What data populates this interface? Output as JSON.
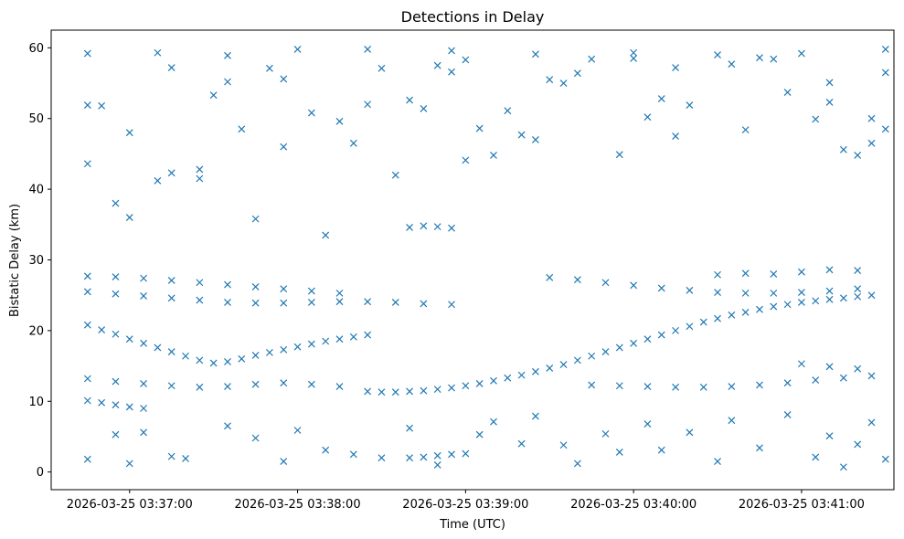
{
  "chart_data": {
    "type": "scatter",
    "title": "Detections in Delay",
    "xlabel": "Time (UTC)",
    "ylabel": "Bistatic Delay (km)",
    "x_ticks": [
      "2026-03-25 03:37:00",
      "2026-03-25 03:38:00",
      "2026-03-25 03:39:00",
      "2026-03-25 03:40:00",
      "2026-03-25 03:41:00"
    ],
    "y_ticks": [
      0,
      10,
      20,
      30,
      40,
      50,
      60
    ],
    "xlim": [
      "2026-03-25 03:36:32",
      "2026-03-25 03:41:33"
    ],
    "ylim": [
      -2.5,
      62.5
    ],
    "grid": false,
    "marker": "x",
    "color": "#1f77b4",
    "series": [
      {
        "points": [
          [
            "2026-03-25 03:36:45",
            20.8
          ],
          [
            "2026-03-25 03:36:50",
            20.1
          ],
          [
            "2026-03-25 03:36:55",
            19.5
          ],
          [
            "2026-03-25 03:37:00",
            18.8
          ],
          [
            "2026-03-25 03:37:05",
            18.2
          ],
          [
            "2026-03-25 03:37:10",
            17.6
          ],
          [
            "2026-03-25 03:37:15",
            17.0
          ],
          [
            "2026-03-25 03:37:20",
            16.4
          ],
          [
            "2026-03-25 03:37:25",
            15.8
          ],
          [
            "2026-03-25 03:37:30",
            15.4
          ],
          [
            "2026-03-25 03:37:35",
            15.6
          ],
          [
            "2026-03-25 03:37:40",
            16.0
          ],
          [
            "2026-03-25 03:37:45",
            16.5
          ],
          [
            "2026-03-25 03:37:50",
            16.9
          ],
          [
            "2026-03-25 03:37:55",
            17.3
          ],
          [
            "2026-03-25 03:38:00",
            17.7
          ],
          [
            "2026-03-25 03:38:05",
            18.1
          ],
          [
            "2026-03-25 03:38:10",
            18.5
          ],
          [
            "2026-03-25 03:38:15",
            18.8
          ],
          [
            "2026-03-25 03:38:20",
            19.1
          ],
          [
            "2026-03-25 03:38:25",
            19.4
          ],
          [
            "2026-03-25 03:38:25",
            11.4
          ],
          [
            "2026-03-25 03:38:30",
            11.3
          ],
          [
            "2026-03-25 03:38:35",
            11.3
          ],
          [
            "2026-03-25 03:38:40",
            11.4
          ],
          [
            "2026-03-25 03:38:45",
            11.5
          ],
          [
            "2026-03-25 03:38:50",
            11.7
          ],
          [
            "2026-03-25 03:38:55",
            11.9
          ],
          [
            "2026-03-25 03:39:00",
            12.2
          ],
          [
            "2026-03-25 03:39:05",
            12.5
          ],
          [
            "2026-03-25 03:39:10",
            12.9
          ],
          [
            "2026-03-25 03:39:15",
            13.3
          ],
          [
            "2026-03-25 03:39:20",
            13.7
          ],
          [
            "2026-03-25 03:39:25",
            14.2
          ],
          [
            "2026-03-25 03:39:30",
            14.7
          ],
          [
            "2026-03-25 03:39:35",
            15.2
          ],
          [
            "2026-03-25 03:39:40",
            15.8
          ],
          [
            "2026-03-25 03:39:45",
            16.4
          ],
          [
            "2026-03-25 03:39:50",
            17.0
          ],
          [
            "2026-03-25 03:39:55",
            17.6
          ],
          [
            "2026-03-25 03:40:00",
            18.2
          ],
          [
            "2026-03-25 03:40:05",
            18.8
          ],
          [
            "2026-03-25 03:40:10",
            19.4
          ],
          [
            "2026-03-25 03:40:15",
            20.0
          ],
          [
            "2026-03-25 03:40:20",
            20.6
          ],
          [
            "2026-03-25 03:40:25",
            21.2
          ],
          [
            "2026-03-25 03:40:30",
            21.7
          ],
          [
            "2026-03-25 03:40:35",
            22.2
          ],
          [
            "2026-03-25 03:40:40",
            22.6
          ],
          [
            "2026-03-25 03:40:45",
            23.0
          ],
          [
            "2026-03-25 03:40:50",
            23.4
          ],
          [
            "2026-03-25 03:40:55",
            23.7
          ],
          [
            "2026-03-25 03:41:00",
            24.0
          ],
          [
            "2026-03-25 03:41:05",
            24.2
          ],
          [
            "2026-03-25 03:41:10",
            24.4
          ],
          [
            "2026-03-25 03:41:15",
            24.6
          ],
          [
            "2026-03-25 03:41:20",
            24.8
          ],
          [
            "2026-03-25 03:41:25",
            25.0
          ],
          [
            "2026-03-25 03:36:45",
            25.5
          ],
          [
            "2026-03-25 03:36:55",
            25.2
          ],
          [
            "2026-03-25 03:37:05",
            24.9
          ],
          [
            "2026-03-25 03:37:15",
            24.6
          ],
          [
            "2026-03-25 03:37:25",
            24.3
          ],
          [
            "2026-03-25 03:37:35",
            24.0
          ],
          [
            "2026-03-25 03:37:45",
            23.9
          ],
          [
            "2026-03-25 03:37:55",
            23.9
          ],
          [
            "2026-03-25 03:38:05",
            24.0
          ],
          [
            "2026-03-25 03:38:15",
            24.1
          ],
          [
            "2026-03-25 03:38:25",
            24.1
          ],
          [
            "2026-03-25 03:38:35",
            24.0
          ],
          [
            "2026-03-25 03:38:45",
            23.8
          ],
          [
            "2026-03-25 03:38:55",
            23.7
          ],
          [
            "2026-03-25 03:36:45",
            27.7
          ],
          [
            "2026-03-25 03:36:55",
            27.6
          ],
          [
            "2026-03-25 03:37:05",
            27.4
          ],
          [
            "2026-03-25 03:37:15",
            27.1
          ],
          [
            "2026-03-25 03:37:25",
            26.8
          ],
          [
            "2026-03-25 03:37:35",
            26.5
          ],
          [
            "2026-03-25 03:37:45",
            26.2
          ],
          [
            "2026-03-25 03:37:55",
            25.9
          ],
          [
            "2026-03-25 03:38:05",
            25.6
          ],
          [
            "2026-03-25 03:38:15",
            25.3
          ],
          [
            "2026-03-25 03:36:45",
            13.2
          ],
          [
            "2026-03-25 03:36:55",
            12.8
          ],
          [
            "2026-03-25 03:37:05",
            12.5
          ],
          [
            "2026-03-25 03:37:15",
            12.2
          ],
          [
            "2026-03-25 03:37:25",
            12.0
          ],
          [
            "2026-03-25 03:37:35",
            12.1
          ],
          [
            "2026-03-25 03:37:45",
            12.4
          ],
          [
            "2026-03-25 03:37:55",
            12.6
          ],
          [
            "2026-03-25 03:38:05",
            12.4
          ],
          [
            "2026-03-25 03:38:15",
            12.1
          ],
          [
            "2026-03-25 03:36:45",
            10.1
          ],
          [
            "2026-03-25 03:36:50",
            9.8
          ],
          [
            "2026-03-25 03:36:55",
            9.5
          ],
          [
            "2026-03-25 03:37:00",
            9.2
          ],
          [
            "2026-03-25 03:37:05",
            9.0
          ],
          [
            "2026-03-25 03:38:40",
            34.6
          ],
          [
            "2026-03-25 03:38:45",
            34.8
          ],
          [
            "2026-03-25 03:38:50",
            34.7
          ],
          [
            "2026-03-25 03:38:55",
            34.5
          ],
          [
            "2026-03-25 03:38:40",
            2.0
          ],
          [
            "2026-03-25 03:38:45",
            2.1
          ],
          [
            "2026-03-25 03:38:50",
            2.3
          ],
          [
            "2026-03-25 03:38:55",
            2.5
          ],
          [
            "2026-03-25 03:39:00",
            2.6
          ],
          [
            "2026-03-25 03:39:30",
            27.5
          ],
          [
            "2026-03-25 03:39:40",
            27.2
          ],
          [
            "2026-03-25 03:39:50",
            26.8
          ],
          [
            "2026-03-25 03:40:00",
            26.4
          ],
          [
            "2026-03-25 03:40:10",
            26.0
          ],
          [
            "2026-03-25 03:40:20",
            25.7
          ],
          [
            "2026-03-25 03:40:30",
            25.4
          ],
          [
            "2026-03-25 03:40:40",
            25.3
          ],
          [
            "2026-03-25 03:40:50",
            25.3
          ],
          [
            "2026-03-25 03:41:00",
            25.4
          ],
          [
            "2026-03-25 03:41:10",
            25.6
          ],
          [
            "2026-03-25 03:41:20",
            25.9
          ],
          [
            "2026-03-25 03:39:45",
            12.3
          ],
          [
            "2026-03-25 03:39:55",
            12.2
          ],
          [
            "2026-03-25 03:40:05",
            12.1
          ],
          [
            "2026-03-25 03:40:15",
            12.0
          ],
          [
            "2026-03-25 03:40:25",
            12.0
          ],
          [
            "2026-03-25 03:40:35",
            12.1
          ],
          [
            "2026-03-25 03:40:45",
            12.3
          ],
          [
            "2026-03-25 03:40:55",
            12.6
          ],
          [
            "2026-03-25 03:41:05",
            13.0
          ],
          [
            "2026-03-25 03:41:15",
            13.3
          ],
          [
            "2026-03-25 03:41:25",
            13.6
          ],
          [
            "2026-03-25 03:41:00",
            15.3
          ],
          [
            "2026-03-25 03:41:10",
            14.9
          ],
          [
            "2026-03-25 03:41:20",
            14.6
          ],
          [
            "2026-03-25 03:40:30",
            27.9
          ],
          [
            "2026-03-25 03:40:40",
            28.1
          ],
          [
            "2026-03-25 03:40:50",
            28.0
          ],
          [
            "2026-03-25 03:41:00",
            28.3
          ],
          [
            "2026-03-25 03:41:10",
            28.6
          ],
          [
            "2026-03-25 03:41:20",
            28.5
          ],
          [
            "2026-03-25 03:36:45",
            59.2
          ],
          [
            "2026-03-25 03:36:45",
            51.9
          ],
          [
            "2026-03-25 03:36:50",
            51.8
          ],
          [
            "2026-03-25 03:36:45",
            43.6
          ],
          [
            "2026-03-25 03:36:55",
            38.0
          ],
          [
            "2026-03-25 03:37:00",
            36.0
          ],
          [
            "2026-03-25 03:37:00",
            48.0
          ],
          [
            "2026-03-25 03:37:00",
            1.2
          ],
          [
            "2026-03-25 03:36:45",
            1.8
          ],
          [
            "2026-03-25 03:37:10",
            41.2
          ],
          [
            "2026-03-25 03:37:10",
            59.3
          ],
          [
            "2026-03-25 03:37:15",
            42.3
          ],
          [
            "2026-03-25 03:37:15",
            57.2
          ],
          [
            "2026-03-25 03:37:25",
            42.8
          ],
          [
            "2026-03-25 03:37:25",
            41.5
          ],
          [
            "2026-03-25 03:37:30",
            53.3
          ],
          [
            "2026-03-25 03:37:35",
            55.2
          ],
          [
            "2026-03-25 03:37:35",
            58.9
          ],
          [
            "2026-03-25 03:37:40",
            48.5
          ],
          [
            "2026-03-25 03:37:45",
            35.8
          ],
          [
            "2026-03-25 03:37:50",
            57.1
          ],
          [
            "2026-03-25 03:37:55",
            46.0
          ],
          [
            "2026-03-25 03:37:55",
            55.6
          ],
          [
            "2026-03-25 03:38:00",
            59.8
          ],
          [
            "2026-03-25 03:38:05",
            50.8
          ],
          [
            "2026-03-25 03:38:10",
            33.5
          ],
          [
            "2026-03-25 03:38:15",
            49.6
          ],
          [
            "2026-03-25 03:38:20",
            46.5
          ],
          [
            "2026-03-25 03:38:25",
            52.0
          ],
          [
            "2026-03-25 03:38:25",
            59.8
          ],
          [
            "2026-03-25 03:38:30",
            57.1
          ],
          [
            "2026-03-25 03:38:35",
            42.0
          ],
          [
            "2026-03-25 03:38:40",
            52.6
          ],
          [
            "2026-03-25 03:38:45",
            51.4
          ],
          [
            "2026-03-25 03:38:50",
            57.5
          ],
          [
            "2026-03-25 03:38:55",
            56.6
          ],
          [
            "2026-03-25 03:38:55",
            59.6
          ],
          [
            "2026-03-25 03:39:00",
            58.3
          ],
          [
            "2026-03-25 03:39:00",
            44.1
          ],
          [
            "2026-03-25 03:39:05",
            48.6
          ],
          [
            "2026-03-25 03:39:10",
            44.8
          ],
          [
            "2026-03-25 03:39:15",
            51.1
          ],
          [
            "2026-03-25 03:39:20",
            47.7
          ],
          [
            "2026-03-25 03:39:25",
            47.0
          ],
          [
            "2026-03-25 03:39:25",
            59.1
          ],
          [
            "2026-03-25 03:39:30",
            55.5
          ],
          [
            "2026-03-25 03:39:35",
            55.0
          ],
          [
            "2026-03-25 03:39:40",
            56.4
          ],
          [
            "2026-03-25 03:39:45",
            58.4
          ],
          [
            "2026-03-25 03:39:55",
            44.9
          ],
          [
            "2026-03-25 03:40:00",
            58.5
          ],
          [
            "2026-03-25 03:40:00",
            59.3
          ],
          [
            "2026-03-25 03:40:05",
            50.2
          ],
          [
            "2026-03-25 03:40:10",
            52.8
          ],
          [
            "2026-03-25 03:40:15",
            57.2
          ],
          [
            "2026-03-25 03:40:15",
            47.5
          ],
          [
            "2026-03-25 03:40:20",
            51.9
          ],
          [
            "2026-03-25 03:40:30",
            59.0
          ],
          [
            "2026-03-25 03:40:35",
            57.7
          ],
          [
            "2026-03-25 03:40:40",
            48.4
          ],
          [
            "2026-03-25 03:40:45",
            58.6
          ],
          [
            "2026-03-25 03:40:50",
            58.4
          ],
          [
            "2026-03-25 03:40:55",
            53.7
          ],
          [
            "2026-03-25 03:41:00",
            59.2
          ],
          [
            "2026-03-25 03:41:05",
            49.9
          ],
          [
            "2026-03-25 03:41:10",
            55.1
          ],
          [
            "2026-03-25 03:41:10",
            52.3
          ],
          [
            "2026-03-25 03:41:15",
            45.6
          ],
          [
            "2026-03-25 03:41:20",
            44.8
          ],
          [
            "2026-03-25 03:41:25",
            50.0
          ],
          [
            "2026-03-25 03:41:25",
            46.5
          ],
          [
            "2026-03-25 03:41:30",
            59.8
          ],
          [
            "2026-03-25 03:41:30",
            56.5
          ],
          [
            "2026-03-25 03:41:30",
            48.5
          ],
          [
            "2026-03-25 03:36:55",
            5.3
          ],
          [
            "2026-03-25 03:37:05",
            5.6
          ],
          [
            "2026-03-25 03:37:15",
            2.2
          ],
          [
            "2026-03-25 03:37:20",
            1.9
          ],
          [
            "2026-03-25 03:37:35",
            6.5
          ],
          [
            "2026-03-25 03:37:45",
            4.8
          ],
          [
            "2026-03-25 03:37:55",
            1.5
          ],
          [
            "2026-03-25 03:38:00",
            5.9
          ],
          [
            "2026-03-25 03:38:10",
            3.1
          ],
          [
            "2026-03-25 03:38:20",
            2.5
          ],
          [
            "2026-03-25 03:38:30",
            2.0
          ],
          [
            "2026-03-25 03:38:40",
            6.2
          ],
          [
            "2026-03-25 03:38:50",
            1.0
          ],
          [
            "2026-03-25 03:39:05",
            5.3
          ],
          [
            "2026-03-25 03:39:10",
            7.1
          ],
          [
            "2026-03-25 03:39:20",
            4.0
          ],
          [
            "2026-03-25 03:39:25",
            7.9
          ],
          [
            "2026-03-25 03:39:35",
            3.8
          ],
          [
            "2026-03-25 03:39:40",
            1.2
          ],
          [
            "2026-03-25 03:39:50",
            5.4
          ],
          [
            "2026-03-25 03:39:55",
            2.8
          ],
          [
            "2026-03-25 03:40:05",
            6.8
          ],
          [
            "2026-03-25 03:40:10",
            3.1
          ],
          [
            "2026-03-25 03:40:20",
            5.6
          ],
          [
            "2026-03-25 03:40:30",
            1.5
          ],
          [
            "2026-03-25 03:40:35",
            7.3
          ],
          [
            "2026-03-25 03:40:45",
            3.4
          ],
          [
            "2026-03-25 03:40:55",
            8.1
          ],
          [
            "2026-03-25 03:41:05",
            2.1
          ],
          [
            "2026-03-25 03:41:10",
            5.1
          ],
          [
            "2026-03-25 03:41:15",
            0.7
          ],
          [
            "2026-03-25 03:41:20",
            3.9
          ],
          [
            "2026-03-25 03:41:25",
            7.0
          ],
          [
            "2026-03-25 03:41:30",
            1.8
          ]
        ]
      }
    ]
  }
}
